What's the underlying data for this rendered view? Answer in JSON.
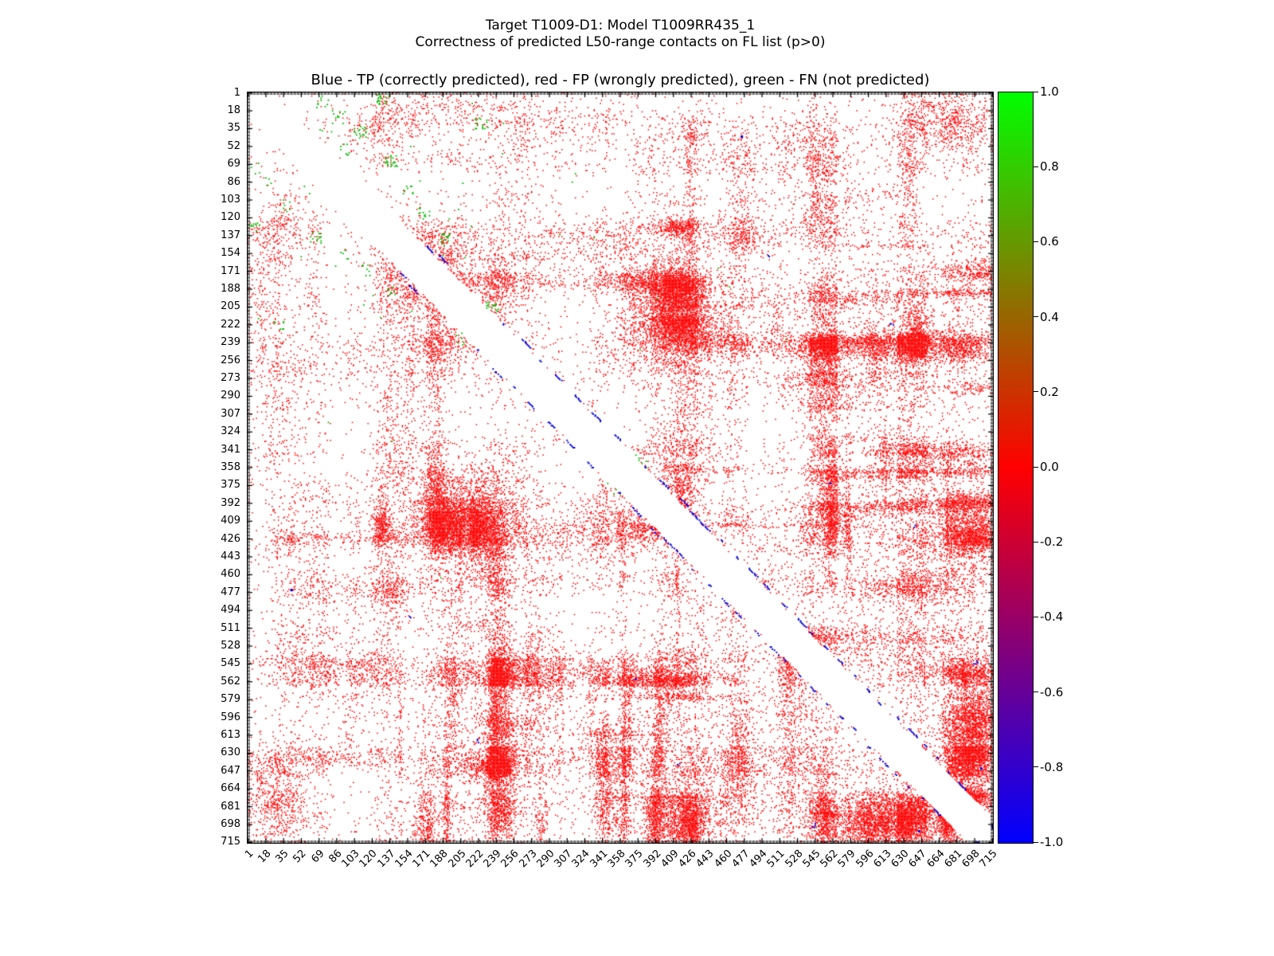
{
  "figure": {
    "title_line1": "Target T1009-D1: Model T1009RR435_1",
    "title_line2": "Correctness of predicted L50-range contacts on FL list (p>0)",
    "axes_title": "Blue - TP (correctly predicted), red - FP (wrongly predicted), green - FN (not predicted)",
    "background": "#ffffff"
  },
  "chart_data": {
    "type": "scatter",
    "subtype": "residue-residue-contact-map",
    "title": "Blue - TP (correctly predicted), red - FP (wrongly predicted), green - FN (not predicted)",
    "x_range": [
      1,
      715
    ],
    "y_range": [
      1,
      715
    ],
    "y_axis_inverted": true,
    "grid": false,
    "tick_labels": [
      1,
      18,
      35,
      52,
      69,
      86,
      103,
      120,
      137,
      154,
      171,
      188,
      205,
      222,
      239,
      256,
      273,
      290,
      307,
      324,
      341,
      358,
      375,
      392,
      409,
      426,
      443,
      460,
      477,
      494,
      511,
      528,
      545,
      562,
      579,
      596,
      613,
      630,
      647,
      664,
      681,
      698,
      715
    ],
    "classes": [
      {
        "name": "TP",
        "meaning": "correctly predicted",
        "color": "#0000dd"
      },
      {
        "name": "FP",
        "meaning": "wrongly predicted",
        "color": "#ff0000"
      },
      {
        "name": "FN",
        "meaning": "not predicted",
        "color": "#00bb00"
      }
    ],
    "dominant_class": "FP",
    "diagonal_band": {
      "white_halfwidth_residues": 23
    },
    "dense_red_bands_residues": [
      [
        400,
        432
      ],
      [
        540,
        566
      ],
      [
        624,
        652
      ]
    ],
    "tp_diagonal_positions": [
      150,
      160,
      222,
      240,
      257,
      273,
      292,
      310,
      330,
      358,
      374,
      392,
      404,
      414,
      428,
      444,
      458,
      472,
      490,
      506,
      516,
      530,
      543,
      557,
      571,
      583,
      597,
      611,
      623,
      635,
      649,
      662,
      700
    ],
    "tp_longrange_points": [
      [
        156,
        500
      ],
      [
        222,
        619
      ],
      [
        42,
        474
      ],
      [
        645,
        703
      ],
      [
        543,
        699
      ],
      [
        375,
        560
      ],
      [
        413,
        640
      ]
    ],
    "fn_cluster_centers": [
      [
        10,
        72
      ],
      [
        24,
        88
      ],
      [
        38,
        108
      ],
      [
        55,
        95
      ],
      [
        8,
        130
      ],
      [
        66,
        138
      ],
      [
        92,
        155
      ],
      [
        115,
        170
      ],
      [
        140,
        188
      ],
      [
        30,
        225
      ],
      [
        205,
        235
      ],
      [
        352,
        378
      ]
    ],
    "colorbar": {
      "tick_labels": [
        "1.0",
        "0.8",
        "0.6",
        "0.4",
        "0.2",
        "0.0",
        "-0.2",
        "-0.4",
        "-0.6",
        "-0.8",
        "-1.0"
      ],
      "value_range": [
        -1.0,
        1.0
      ],
      "gradient_stops": [
        {
          "pos": 0.0,
          "color": "#00ff00"
        },
        {
          "pos": 0.25,
          "color": "#7f7f00"
        },
        {
          "pos": 0.5,
          "color": "#ff0000"
        },
        {
          "pos": 0.75,
          "color": "#7f007f"
        },
        {
          "pos": 1.0,
          "color": "#0000ff"
        }
      ]
    }
  }
}
